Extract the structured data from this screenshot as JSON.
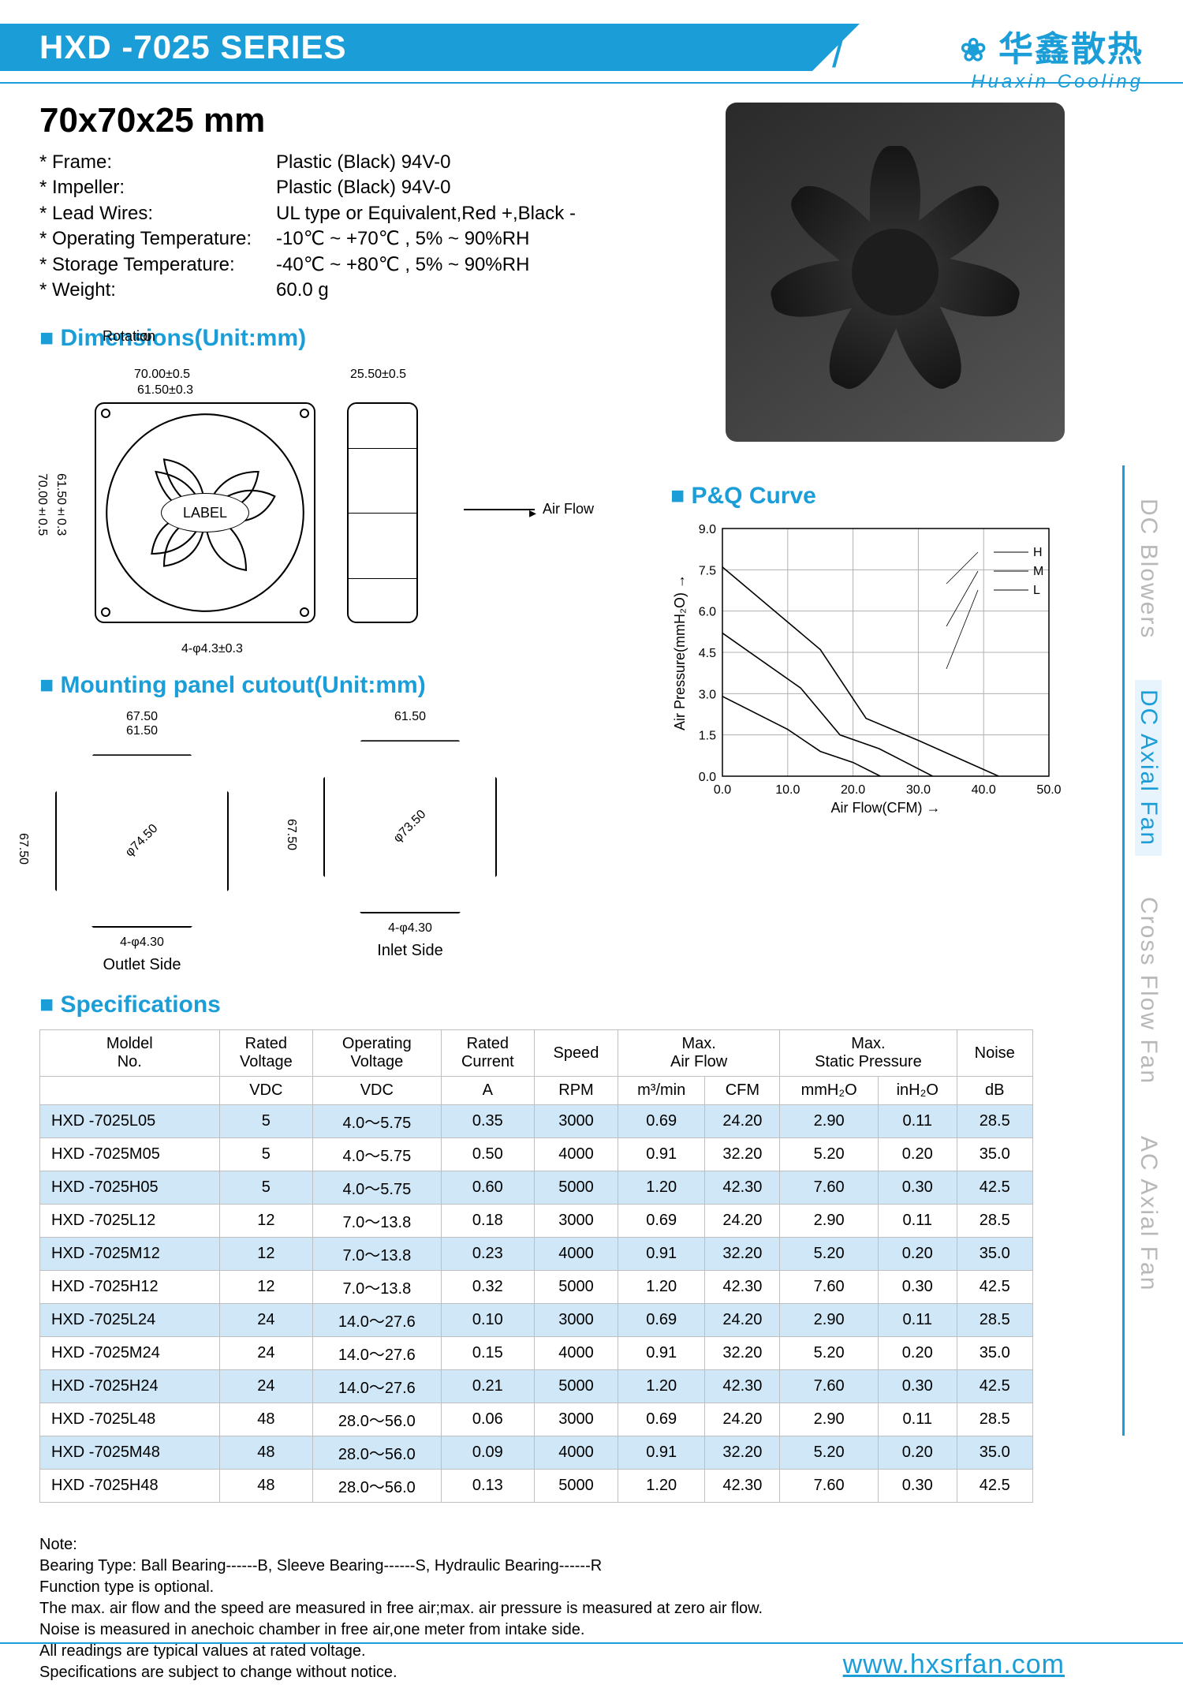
{
  "header": {
    "series": "HXD -7025 SERIES",
    "brand_cn": "华鑫散热",
    "brand_en": "Huaxin Cooling"
  },
  "size_title": "70x70x25 mm",
  "basic_specs": [
    {
      "k": "* Frame:",
      "v": "Plastic (Black) 94V-0"
    },
    {
      "k": "* Impeller:",
      "v": "Plastic (Black) 94V-0"
    },
    {
      "k": "* Lead Wires:",
      "v": "UL type or Equivalent,Red +,Black -"
    },
    {
      "k": "* Operating Temperature:",
      "v": "-10℃ ~ +70℃ ,  5% ~ 90%RH"
    },
    {
      "k": "* Storage Temperature:",
      "v": "-40℃ ~ +80℃ ,  5% ~ 90%RH"
    },
    {
      "k": "* Weight:",
      "v": "60.0  g"
    }
  ],
  "sections": {
    "dims": "Dimensions(Unit:mm)",
    "cutout": "Mounting panel cutout(Unit:mm)",
    "pq": "P&Q Curve",
    "table": "Specifications"
  },
  "dims": {
    "rotation": "Rotation",
    "front_w": "70.00±0.5",
    "front_h": "70.00±0.5",
    "mount_w": "61.50±0.3",
    "mount_h": "61.50±0.3",
    "holes": "4-φ4.3±0.3",
    "depth": "25.50±0.5",
    "airflow": "Air Flow",
    "label": "LABEL"
  },
  "cutout": {
    "outlet": "Outlet Side",
    "inlet": "Inlet Side",
    "w": "67.50",
    "w_in": "61.50",
    "h": "67.50",
    "dia1": "φ74.50",
    "dia2": "φ73.50",
    "holes": "4-φ4.30"
  },
  "pq": {
    "y_label": "Air Pressure(mmH₂O)",
    "x_label": "Air Flow(CFM)",
    "y_ticks": [
      "0.0",
      "1.5",
      "3.0",
      "4.5",
      "6.0",
      "7.5",
      "9.0"
    ],
    "x_ticks": [
      "0.0",
      "10.0",
      "20.0",
      "30.0",
      "40.0",
      "50.0"
    ],
    "xlim": [
      0,
      50
    ],
    "ylim": [
      0,
      9
    ],
    "series": [
      {
        "name": "H",
        "color": "#000",
        "points": [
          [
            0,
            7.6
          ],
          [
            15,
            4.6
          ],
          [
            22,
            2.1
          ],
          [
            30,
            1.3
          ],
          [
            42.3,
            0
          ]
        ]
      },
      {
        "name": "M",
        "color": "#000",
        "points": [
          [
            0,
            5.2
          ],
          [
            12,
            3.2
          ],
          [
            18,
            1.5
          ],
          [
            24,
            1.0
          ],
          [
            32.2,
            0
          ]
        ]
      },
      {
        "name": "L",
        "color": "#000",
        "points": [
          [
            0,
            2.9
          ],
          [
            10,
            1.7
          ],
          [
            15,
            0.9
          ],
          [
            20,
            0.5
          ],
          [
            24.2,
            0
          ]
        ]
      }
    ],
    "legend": [
      "H",
      "M",
      "L"
    ],
    "grid_color": "#b0b0b0"
  },
  "table": {
    "columns_top": [
      "Moldel\nNo.",
      "Rated\nVoltage",
      "Operating\nVoltage",
      "Rated\nCurrent",
      "Speed",
      "Max.\nAir Flow",
      "",
      "Max.\nStatic Pressure",
      "",
      "Noise"
    ],
    "columns_units": [
      "",
      "VDC",
      "VDC",
      "A",
      "RPM",
      "m³/min",
      "CFM",
      "mmH₂O",
      "inH₂O",
      "dB"
    ],
    "rows": [
      [
        "HXD -7025L05",
        "5",
        "4.0～5.75",
        "0.35",
        "3000",
        "0.69",
        "24.20",
        "2.90",
        "0.11",
        "28.5"
      ],
      [
        "HXD -7025M05",
        "5",
        "4.0～5.75",
        "0.50",
        "4000",
        "0.91",
        "32.20",
        "5.20",
        "0.20",
        "35.0"
      ],
      [
        "HXD -7025H05",
        "5",
        "4.0～5.75",
        "0.60",
        "5000",
        "1.20",
        "42.30",
        "7.60",
        "0.30",
        "42.5"
      ],
      [
        "HXD -7025L12",
        "12",
        "7.0～13.8",
        "0.18",
        "3000",
        "0.69",
        "24.20",
        "2.90",
        "0.11",
        "28.5"
      ],
      [
        "HXD -7025M12",
        "12",
        "7.0～13.8",
        "0.23",
        "4000",
        "0.91",
        "32.20",
        "5.20",
        "0.20",
        "35.0"
      ],
      [
        "HXD -7025H12",
        "12",
        "7.0～13.8",
        "0.32",
        "5000",
        "1.20",
        "42.30",
        "7.60",
        "0.30",
        "42.5"
      ],
      [
        "HXD -7025L24",
        "24",
        "14.0～27.6",
        "0.10",
        "3000",
        "0.69",
        "24.20",
        "2.90",
        "0.11",
        "28.5"
      ],
      [
        "HXD -7025M24",
        "24",
        "14.0～27.6",
        "0.15",
        "4000",
        "0.91",
        "32.20",
        "5.20",
        "0.20",
        "35.0"
      ],
      [
        "HXD -7025H24",
        "24",
        "14.0～27.6",
        "0.21",
        "5000",
        "1.20",
        "42.30",
        "7.60",
        "0.30",
        "42.5"
      ],
      [
        "HXD -7025L48",
        "48",
        "28.0～56.0",
        "0.06",
        "3000",
        "0.69",
        "24.20",
        "2.90",
        "0.11",
        "28.5"
      ],
      [
        "HXD -7025M48",
        "48",
        "28.0～56.0",
        "0.09",
        "4000",
        "0.91",
        "32.20",
        "5.20",
        "0.20",
        "35.0"
      ],
      [
        "HXD -7025H48",
        "48",
        "28.0～56.0",
        "0.13",
        "5000",
        "1.20",
        "42.30",
        "7.60",
        "0.30",
        "42.5"
      ]
    ],
    "zebra_color": "#cfe7f6"
  },
  "notes": {
    "title": "Note:",
    "lines": [
      "Bearing Type:  Ball Bearing------B,  Sleeve Bearing------S, Hydraulic Bearing------R",
      "Function type is optional.",
      "The max. air flow and the speed are measured in free air;max. air pressure is measured at zero air flow.",
      "Noise is measured in anechoic chamber in free air,one meter from intake side.",
      "All readings are typical values at rated voltage.",
      "Specifications are subject to change without notice."
    ]
  },
  "side_tabs": [
    "DC Blowers",
    "DC Axial Fan",
    "Cross Flow Fan",
    "AC Axial Fan"
  ],
  "side_active_index": 1,
  "footer_url": "www.hxsrfan.com",
  "colors": {
    "accent": "#1b9ed8"
  }
}
